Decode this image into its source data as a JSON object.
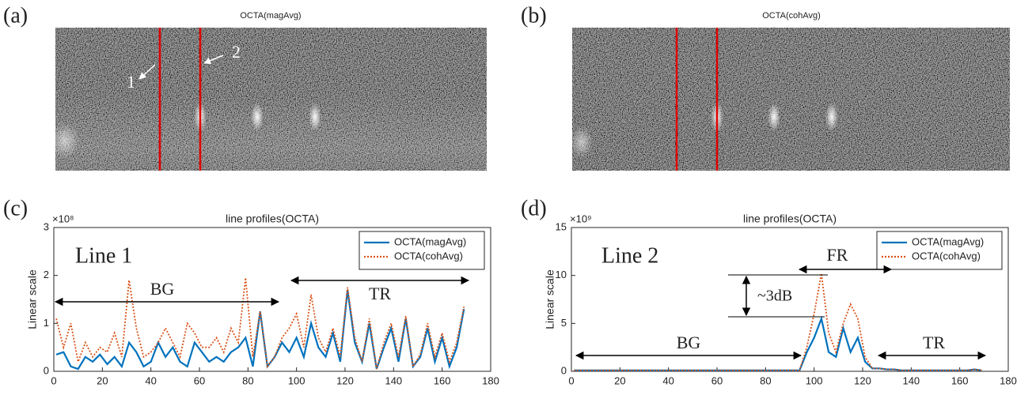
{
  "images": [
    {
      "label": "(a)",
      "title": "OCTA(magAvg)",
      "annotations": [
        "1",
        "2"
      ]
    },
    {
      "label": "(b)",
      "title": "OCTA(cohAvg)"
    }
  ],
  "chart_data": [
    {
      "type": "line",
      "panel_label": "(c)",
      "title": "line profiles(OCTA)",
      "y_label": "Linear scale",
      "y_multiplier": "×10⁸",
      "annotations": [
        "Line 1",
        "BG",
        "TR"
      ],
      "x": [
        1,
        4,
        7,
        10,
        13,
        16,
        19,
        22,
        25,
        28,
        31,
        34,
        37,
        40,
        43,
        46,
        49,
        52,
        55,
        58,
        61,
        64,
        67,
        70,
        73,
        76,
        79,
        82,
        85,
        88,
        91,
        94,
        97,
        100,
        103,
        106,
        109,
        112,
        115,
        118,
        121,
        124,
        127,
        130,
        133,
        136,
        139,
        142,
        145,
        148,
        151,
        154,
        157,
        160,
        163,
        166,
        169
      ],
      "series": [
        {
          "name": "OCTA(magAvg)",
          "color": "#0072bd",
          "linestyle": "solid",
          "values": [
            0.35,
            0.4,
            0.1,
            0.05,
            0.3,
            0.2,
            0.35,
            0.15,
            0.3,
            0.1,
            0.6,
            0.4,
            0.1,
            0.2,
            0.6,
            0.3,
            0.5,
            0.2,
            0.1,
            0.6,
            0.4,
            0.2,
            0.3,
            0.2,
            0.4,
            0.5,
            0.7,
            0.1,
            1.25,
            0.1,
            0.3,
            0.6,
            0.4,
            0.7,
            0.3,
            1.0,
            0.5,
            0.3,
            0.8,
            0.2,
            1.7,
            0.6,
            0.2,
            1.0,
            0.05,
            0.5,
            0.9,
            0.2,
            1.1,
            0.1,
            0.3,
            0.9,
            0.2,
            0.7,
            0.1,
            0.5,
            1.3
          ]
        },
        {
          "name": "OCTA(cohAvg)",
          "color": "#d95319",
          "linestyle": "dotted",
          "values": [
            1.1,
            0.5,
            1.0,
            0.2,
            0.6,
            0.3,
            0.5,
            0.4,
            0.8,
            0.3,
            1.9,
            0.9,
            0.3,
            0.4,
            0.6,
            0.9,
            0.6,
            0.3,
            1.0,
            0.8,
            0.5,
            0.5,
            0.7,
            0.4,
            0.9,
            0.6,
            1.95,
            0.3,
            1.25,
            0.1,
            0.3,
            0.7,
            0.9,
            1.2,
            0.5,
            1.6,
            0.7,
            0.4,
            0.9,
            0.3,
            1.75,
            0.7,
            0.2,
            1.1,
            0.05,
            0.6,
            1.0,
            0.3,
            1.15,
            0.1,
            0.35,
            1.0,
            0.3,
            0.8,
            0.2,
            0.6,
            1.35
          ]
        }
      ],
      "xlim": [
        0,
        180
      ],
      "xticks": [
        0,
        20,
        40,
        60,
        80,
        100,
        120,
        140,
        160,
        180
      ],
      "ylim": [
        0,
        3
      ],
      "yticks": [
        0,
        1,
        2,
        3
      ],
      "legend": "upper right"
    },
    {
      "type": "line",
      "panel_label": "(d)",
      "title": "line profiles(OCTA)",
      "y_label": "Linear scale",
      "y_multiplier": "×10⁹",
      "annotations": [
        "Line 2",
        "FR",
        "~3dB",
        "BG",
        "TR"
      ],
      "x": [
        1,
        4,
        7,
        10,
        13,
        16,
        19,
        22,
        25,
        28,
        31,
        34,
        37,
        40,
        43,
        46,
        49,
        52,
        55,
        58,
        61,
        64,
        67,
        70,
        73,
        76,
        79,
        82,
        85,
        88,
        91,
        94,
        97,
        100,
        103,
        106,
        109,
        112,
        115,
        118,
        121,
        124,
        127,
        130,
        133,
        136,
        139,
        142,
        145,
        148,
        151,
        154,
        157,
        160,
        163,
        166,
        169
      ],
      "series": [
        {
          "name": "OCTA(magAvg)",
          "color": "#0072bd",
          "linestyle": "solid",
          "values": [
            0.1,
            0.1,
            0.1,
            0.1,
            0.1,
            0.1,
            0.1,
            0.1,
            0.1,
            0.1,
            0.1,
            0.1,
            0.1,
            0.1,
            0.1,
            0.1,
            0.1,
            0.1,
            0.1,
            0.1,
            0.1,
            0.1,
            0.1,
            0.1,
            0.1,
            0.1,
            0.1,
            0.1,
            0.1,
            0.1,
            0.1,
            0.1,
            2.0,
            3.5,
            5.5,
            2.0,
            1.5,
            4.5,
            2.0,
            3.5,
            1.0,
            0.3,
            0.3,
            0.2,
            0.2,
            0.1,
            0.1,
            0.1,
            0.1,
            0.1,
            0.1,
            0.1,
            0.1,
            0.1,
            0.1,
            0.2,
            0.1
          ]
        },
        {
          "name": "OCTA(cohAvg)",
          "color": "#d95319",
          "linestyle": "dotted",
          "values": [
            0.1,
            0.1,
            0.1,
            0.1,
            0.1,
            0.1,
            0.1,
            0.1,
            0.1,
            0.1,
            0.1,
            0.1,
            0.1,
            0.1,
            0.1,
            0.1,
            0.1,
            0.1,
            0.1,
            0.1,
            0.1,
            0.1,
            0.1,
            0.1,
            0.1,
            0.1,
            0.1,
            0.1,
            0.1,
            0.1,
            0.1,
            0.1,
            2.5,
            6.0,
            10.2,
            4.0,
            2.0,
            5.0,
            7.0,
            5.5,
            1.5,
            0.3,
            0.3,
            0.2,
            0.2,
            0.1,
            0.1,
            0.1,
            0.1,
            0.1,
            0.1,
            0.1,
            0.1,
            0.1,
            0.1,
            0.2,
            0.1
          ]
        }
      ],
      "xlim": [
        0,
        180
      ],
      "xticks": [
        0,
        20,
        40,
        60,
        80,
        100,
        120,
        140,
        160,
        180
      ],
      "ylim": [
        0,
        15
      ],
      "yticks": [
        0,
        5,
        10,
        15
      ],
      "legend": "upper right"
    }
  ]
}
